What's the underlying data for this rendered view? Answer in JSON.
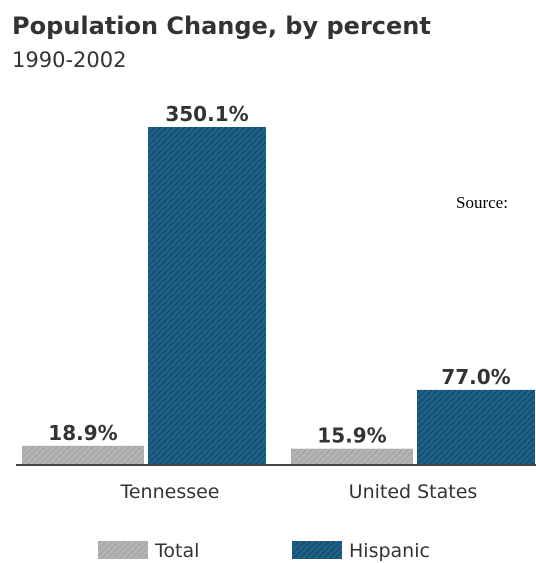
{
  "title": "Population Change, by percent",
  "subtitle": "1990-2002",
  "source_label": "Source:",
  "colors": {
    "total": "#b3b3b3",
    "hispanic": "#1d5f85",
    "axis": "#444444"
  },
  "chart_data": {
    "type": "bar",
    "categories": [
      "Tennessee",
      "United States"
    ],
    "series": [
      {
        "name": "Total",
        "values": [
          18.9,
          15.9
        ],
        "labels": [
          "18.9%",
          "15.9%"
        ]
      },
      {
        "name": "Hispanic",
        "values": [
          350.1,
          77.0
        ],
        "labels": [
          "350.1%",
          "77.0%"
        ]
      }
    ],
    "ylim": [
      0,
      350.1
    ],
    "grid": false,
    "legend": "bottom"
  }
}
